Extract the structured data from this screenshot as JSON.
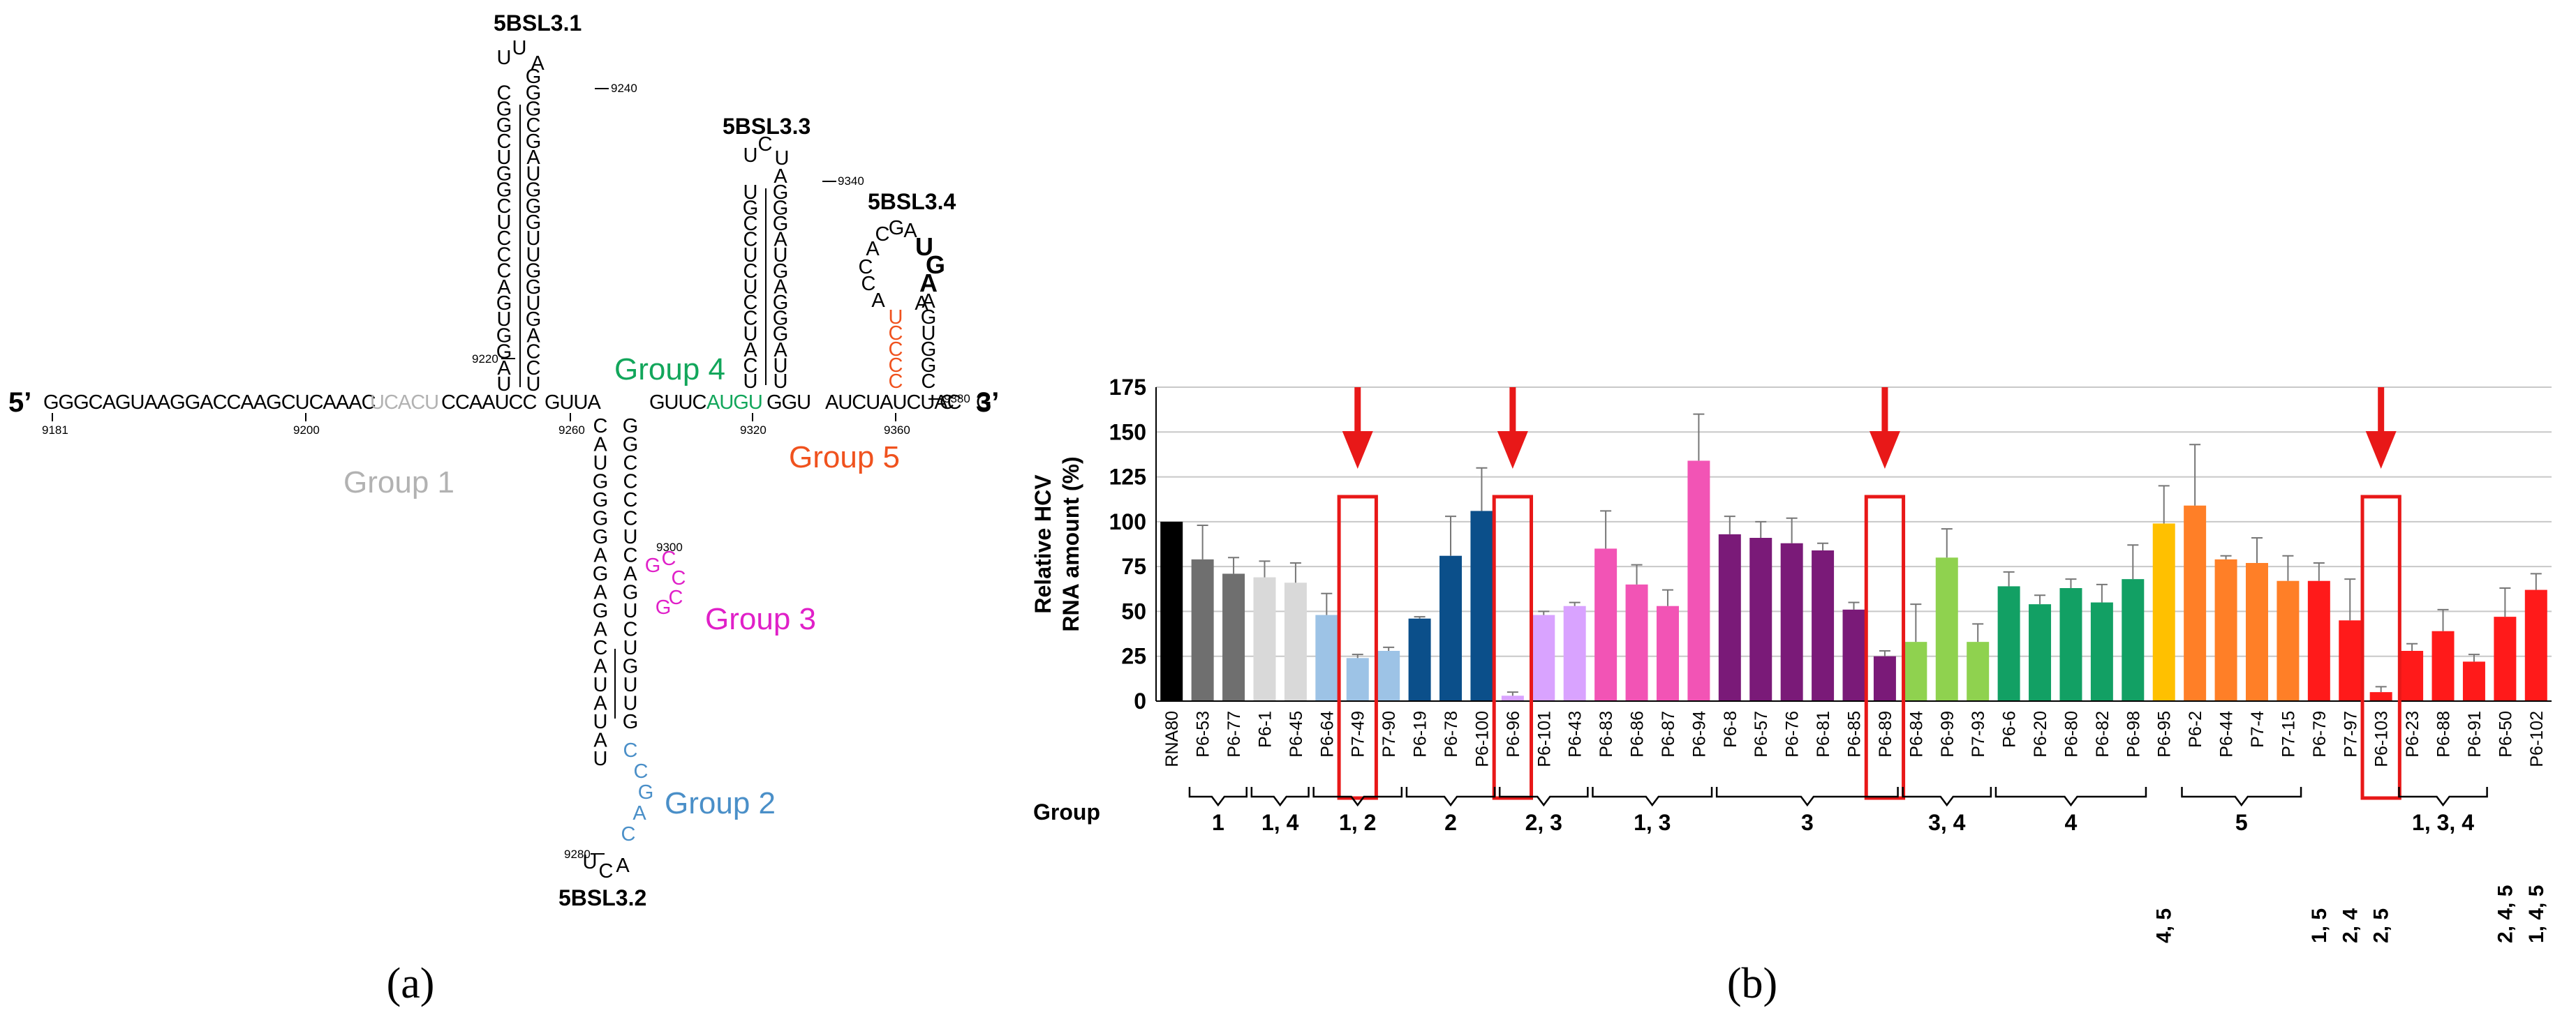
{
  "panel_a": {
    "caption": "(a)",
    "end5": "5’",
    "end3": "3’",
    "stem_labels": {
      "sl31": "5BSL3.1",
      "sl32": "5BSL3.2",
      "sl33": "5BSL3.3",
      "sl34": "5BSL3.4"
    },
    "groups": {
      "g1": "Group 1",
      "g2": "Group 2",
      "g3": "Group 3",
      "g4": "Group 4",
      "g5": "Group 5"
    },
    "numbers": {
      "n9181": "9181",
      "n9200": "9200",
      "n9220": "9220",
      "n9240": "9240",
      "n9260": "9260",
      "n9280": "9280",
      "n9300": "9300",
      "n9320": "9320",
      "n9340": "9340",
      "n9360": "9360",
      "n9380": "9380"
    },
    "backbone": {
      "s1": "GGGCAGUAAGGACCAAGCUCAAAC",
      "g1seq": "UCACU",
      "s2": "CCAAUCC",
      "s3": "GUUA",
      "s4": "GUUC",
      "g4seq": "AUGU",
      "s5": "GGU",
      "s6": "AUCUAUCUAC",
      "s7": "G",
      "s8": "C"
    },
    "sl31": {
      "loop": [
        "U",
        "U",
        "A"
      ],
      "left": [
        "U",
        "A",
        "G",
        "G",
        "U",
        "G",
        "A",
        "C",
        "C",
        "C",
        "U",
        "C",
        "G",
        "G",
        "U",
        "C",
        "G",
        "G",
        "C"
      ],
      "right": [
        "U",
        "C",
        "C",
        "A",
        "G",
        "U",
        "G",
        "G",
        "U",
        "U",
        "G",
        "G",
        "G",
        "U",
        "A",
        "G",
        "C",
        "G",
        "G",
        "G"
      ]
    },
    "sl33": {
      "loop": [
        "U",
        "C",
        "U"
      ],
      "left": [
        "U",
        "C",
        "A",
        "U",
        "C",
        "C",
        "U",
        "C",
        "U",
        "C",
        "C",
        "G",
        "U"
      ],
      "right": [
        "U",
        "U",
        "A",
        "G",
        "G",
        "G",
        "A",
        "G",
        "U",
        "A",
        "G",
        "G",
        "G",
        "A"
      ]
    },
    "sl34": {
      "loop": [
        "C",
        "G",
        "A",
        "U",
        "G",
        "A",
        "A"
      ],
      "left": [
        "A",
        "C",
        "C",
        "A"
      ],
      "left_g5": [
        "C",
        "C",
        "C",
        "C",
        "U"
      ],
      "right": [
        "C",
        "G",
        "G",
        "U",
        "G",
        "A"
      ]
    },
    "sl32": {
      "left": [
        "C",
        "A",
        "U",
        "G",
        "G",
        "G",
        "G",
        "A",
        "G",
        "A",
        "G",
        "A",
        "C",
        "A",
        "U",
        "A",
        "U",
        "A",
        "U"
      ],
      "right": [
        "G",
        "G",
        "C",
        "C",
        "C",
        "C",
        "U",
        "C",
        "A",
        "G",
        "U",
        "C",
        "U",
        "G",
        "U",
        "U",
        "G"
      ],
      "g3seq": [
        "G",
        "C",
        "C",
        "C",
        "G"
      ],
      "g2seq": [
        "C",
        "C",
        "G",
        "A",
        "C"
      ],
      "bottom": [
        "U",
        "C",
        "A"
      ]
    }
  },
  "panel_b": {
    "caption": "(b)",
    "group_header": "Group"
  },
  "colors": {
    "black": "#000000",
    "group1_gray": "#b2b2b2",
    "group2_blue": "#4a8fc8",
    "group3_magenta": "#e020c8",
    "group4_green": "#12a65b",
    "group5_orange": "#f0521e",
    "arrow_red": "#e81818"
  },
  "chart_data": {
    "type": "bar",
    "ylabel": "Relative HCV RNA amount (%)",
    "ylabel_lines": [
      "Relative HCV",
      "RNA amount (%)"
    ],
    "ylim": [
      0,
      175
    ],
    "yticks": [
      0,
      25,
      50,
      75,
      100,
      125,
      150,
      175
    ],
    "grid": true,
    "bars": [
      {
        "label": "RNA80",
        "value": 100,
        "err": 0,
        "color": "#000000"
      },
      {
        "label": "P6-53",
        "value": 79,
        "err": 19,
        "color": "#6f6f6f"
      },
      {
        "label": "P6-77",
        "value": 71,
        "err": 9,
        "color": "#6f6f6f"
      },
      {
        "label": "P6-1",
        "value": 69,
        "err": 9,
        "color": "#d9d9d9"
      },
      {
        "label": "P6-45",
        "value": 66,
        "err": 11,
        "color": "#d9d9d9"
      },
      {
        "label": "P6-64",
        "value": 48,
        "err": 12,
        "color": "#9dc3e6"
      },
      {
        "label": "P7-49",
        "value": 24,
        "err": 2,
        "color": "#9dc3e6"
      },
      {
        "label": "P7-90",
        "value": 28,
        "err": 2,
        "color": "#9dc3e6"
      },
      {
        "label": "P6-19",
        "value": 46,
        "err": 1,
        "color": "#0b4f8a"
      },
      {
        "label": "P6-78",
        "value": 81,
        "err": 22,
        "color": "#0b4f8a"
      },
      {
        "label": "P6-100",
        "value": 106,
        "err": 24,
        "color": "#0b4f8a"
      },
      {
        "label": "P6-96",
        "value": 3,
        "err": 2,
        "color": "#d9a3ff"
      },
      {
        "label": "P6-101",
        "value": 48,
        "err": 2,
        "color": "#d9a3ff"
      },
      {
        "label": "P6-43",
        "value": 53,
        "err": 2,
        "color": "#d9a3ff"
      },
      {
        "label": "P6-83",
        "value": 85,
        "err": 21,
        "color": "#f254b5"
      },
      {
        "label": "P6-86",
        "value": 65,
        "err": 11,
        "color": "#f254b5"
      },
      {
        "label": "P6-87",
        "value": 53,
        "err": 9,
        "color": "#f254b5"
      },
      {
        "label": "P6-94",
        "value": 134,
        "err": 26,
        "color": "#f254b5"
      },
      {
        "label": "P6-8",
        "value": 93,
        "err": 10,
        "color": "#7a1a78"
      },
      {
        "label": "P6-57",
        "value": 91,
        "err": 9,
        "color": "#7a1a78"
      },
      {
        "label": "P6-76",
        "value": 88,
        "err": 14,
        "color": "#7a1a78"
      },
      {
        "label": "P6-81",
        "value": 84,
        "err": 4,
        "color": "#7a1a78"
      },
      {
        "label": "P6-85",
        "value": 51,
        "err": 4,
        "color": "#7a1a78"
      },
      {
        "label": "P6-89",
        "value": 25,
        "err": 3,
        "color": "#7a1a78"
      },
      {
        "label": "P6-84",
        "value": 33,
        "err": 21,
        "color": "#8fd24f"
      },
      {
        "label": "P6-99",
        "value": 80,
        "err": 16,
        "color": "#8fd24f"
      },
      {
        "label": "P7-93",
        "value": 33,
        "err": 10,
        "color": "#8fd24f"
      },
      {
        "label": "P6-6",
        "value": 64,
        "err": 8,
        "color": "#12a064"
      },
      {
        "label": "P6-20",
        "value": 54,
        "err": 5,
        "color": "#12a064"
      },
      {
        "label": "P6-80",
        "value": 63,
        "err": 5,
        "color": "#12a064"
      },
      {
        "label": "P6-82",
        "value": 55,
        "err": 10,
        "color": "#12a064"
      },
      {
        "label": "P6-98",
        "value": 68,
        "err": 19,
        "color": "#12a064"
      },
      {
        "label": "P6-95",
        "value": 99,
        "err": 21,
        "color": "#ffc000"
      },
      {
        "label": "P6-2",
        "value": 109,
        "err": 34,
        "color": "#ff7f27"
      },
      {
        "label": "P6-44",
        "value": 79,
        "err": 2,
        "color": "#ff7f27"
      },
      {
        "label": "P7-4",
        "value": 77,
        "err": 14,
        "color": "#ff7f27"
      },
      {
        "label": "P7-15",
        "value": 67,
        "err": 14,
        "color": "#ff7f27"
      },
      {
        "label": "P6-79",
        "value": 67,
        "err": 10,
        "color": "#ff1a1a"
      },
      {
        "label": "P7-97",
        "value": 45,
        "err": 23,
        "color": "#ff1a1a"
      },
      {
        "label": "P6-103",
        "value": 5,
        "err": 3,
        "color": "#ff1a1a"
      },
      {
        "label": "P6-23",
        "value": 28,
        "err": 4,
        "color": "#ff1a1a"
      },
      {
        "label": "P6-88",
        "value": 39,
        "err": 12,
        "color": "#ff1a1a"
      },
      {
        "label": "P6-91",
        "value": 22,
        "err": 4,
        "color": "#ff1a1a"
      },
      {
        "label": "P6-50",
        "value": 47,
        "err": 16,
        "color": "#ff1a1a"
      },
      {
        "label": "P6-102",
        "value": 62,
        "err": 9,
        "color": "#ff1a1a"
      }
    ],
    "highlighted": [
      "P7-49",
      "P6-96",
      "P6-89",
      "P6-103"
    ],
    "group_brackets": [
      {
        "label": "1",
        "from": 1,
        "to": 2
      },
      {
        "label": "1, 4",
        "from": 3,
        "to": 4
      },
      {
        "label": "1, 2",
        "from": 5,
        "to": 7
      },
      {
        "label": "2",
        "from": 8,
        "to": 10
      },
      {
        "label": "2, 3",
        "from": 11,
        "to": 13
      },
      {
        "label": "1, 3",
        "from": 14,
        "to": 17
      },
      {
        "label": "3",
        "from": 18,
        "to": 23
      },
      {
        "label": "3, 4",
        "from": 24,
        "to": 26
      },
      {
        "label": "4",
        "from": 27,
        "to": 31
      },
      {
        "label": "5",
        "from": 33,
        "to": 36
      },
      {
        "label": "1, 3, 4",
        "from": 40,
        "to": 42
      }
    ],
    "group_singles": [
      {
        "label": "4, 5",
        "index": 32
      },
      {
        "label": "1, 5",
        "index": 37
      },
      {
        "label": "2, 4",
        "index": 38
      },
      {
        "label": "2, 5",
        "index": 39
      },
      {
        "label": "2, 4, 5",
        "index": 43
      },
      {
        "label": "1, 4, 5",
        "index": 44
      }
    ]
  }
}
